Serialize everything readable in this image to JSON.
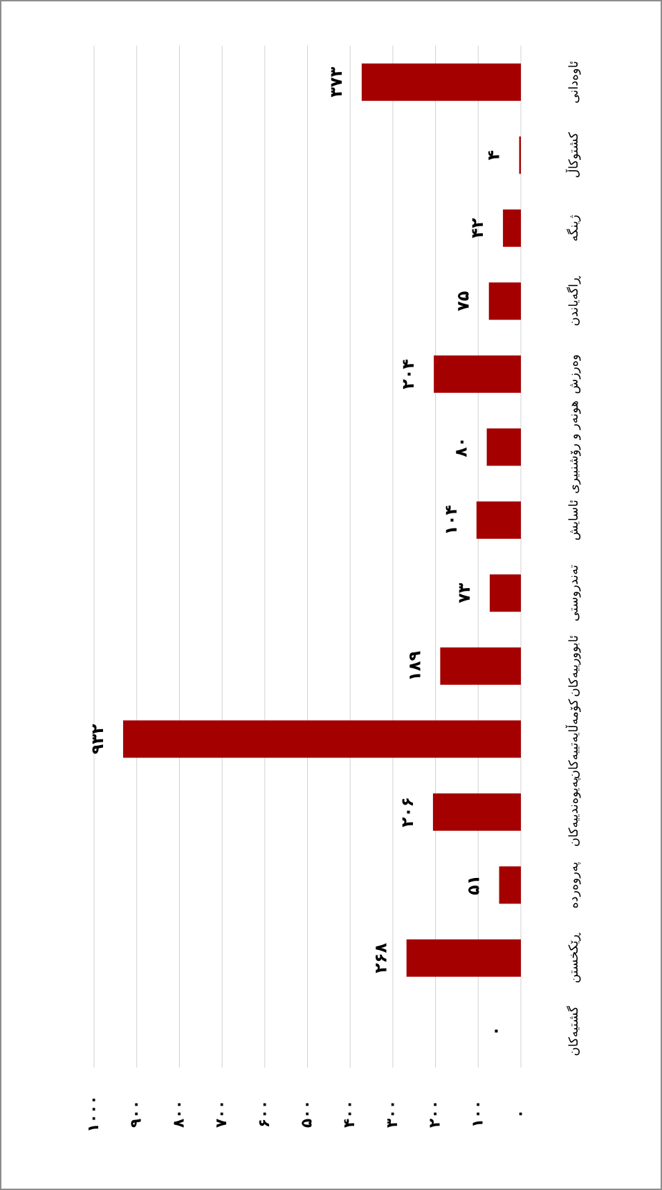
{
  "chart_data": {
    "type": "bar",
    "orientation": "rotated",
    "color": "#a50000",
    "grid": true,
    "categories": [
      "گشتیەکان",
      "ڕێکخستن",
      "پەروەردە",
      "پەیوەندییەکان",
      "کۆمەڵایەتییەکان",
      "ئابوورییەکان",
      "تەندروستی",
      "ئاسایش",
      "هونەر و رۆشنبیری",
      "وەرزش",
      "ڕاگەیاندن",
      "ژینگە",
      "کشتوکاڵ",
      "ئاوەدانی"
    ],
    "values": [
      0,
      268,
      51,
      206,
      932,
      189,
      73,
      104,
      80,
      204,
      75,
      42,
      4,
      373
    ],
    "value_labels": [
      "۰",
      "۲۶۸",
      "۵۱",
      "۲۰۶",
      "۹۳۲",
      "۱۸۹",
      "۷۳",
      "۱۰۴",
      "۸۰",
      "۲۰۴",
      "۷۵",
      "۴۲",
      "۴",
      "۳۷۳"
    ],
    "ylim": [
      0,
      1000
    ],
    "yticks": [
      {
        "value": 0,
        "label": "۰"
      },
      {
        "value": 100,
        "label": "۱۰۰"
      },
      {
        "value": 200,
        "label": "۲۰۰"
      },
      {
        "value": 300,
        "label": "۳۰۰"
      },
      {
        "value": 400,
        "label": "۴۰۰"
      },
      {
        "value": 500,
        "label": "۵۰۰"
      },
      {
        "value": 600,
        "label": "۶۰۰"
      },
      {
        "value": 700,
        "label": "۷۰۰"
      },
      {
        "value": 800,
        "label": "۸۰۰"
      },
      {
        "value": 900,
        "label": "۹۰۰"
      },
      {
        "value": 1000,
        "label": "۱۰۰۰"
      }
    ]
  }
}
